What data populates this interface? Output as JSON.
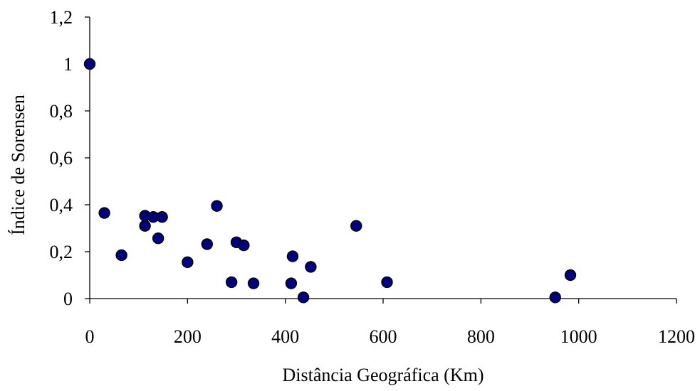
{
  "chart_data": {
    "type": "scatter",
    "title": "",
    "xlabel": "Distância Geográfica (Km)",
    "ylabel": "Índice de Sorensen",
    "xlim": [
      0,
      1200
    ],
    "ylim": [
      0,
      1.2
    ],
    "x_ticks": [
      0,
      200,
      400,
      600,
      800,
      1000,
      1200
    ],
    "y_ticks": [
      0,
      0.2,
      0.4,
      0.6,
      0.8,
      1,
      1.2
    ],
    "x_tick_labels": [
      "0",
      "200",
      "400",
      "600",
      "800",
      "1000",
      "1200"
    ],
    "y_tick_labels": [
      "0",
      "0,2",
      "0,4",
      "0,6",
      "0,8",
      "1",
      "1,2"
    ],
    "grid": false,
    "legend": "none",
    "marker_color": "#000080",
    "marker_edge_color": "#000000",
    "series": [
      {
        "points": [
          {
            "x": 0,
            "y": 1.0
          },
          {
            "x": 30,
            "y": 0.365
          },
          {
            "x": 65,
            "y": 0.185
          },
          {
            "x": 113,
            "y": 0.353
          },
          {
            "x": 113,
            "y": 0.31
          },
          {
            "x": 130,
            "y": 0.348
          },
          {
            "x": 140,
            "y": 0.257
          },
          {
            "x": 148,
            "y": 0.348
          },
          {
            "x": 200,
            "y": 0.155
          },
          {
            "x": 240,
            "y": 0.232
          },
          {
            "x": 260,
            "y": 0.395
          },
          {
            "x": 290,
            "y": 0.07
          },
          {
            "x": 300,
            "y": 0.24
          },
          {
            "x": 315,
            "y": 0.227
          },
          {
            "x": 335,
            "y": 0.065
          },
          {
            "x": 412,
            "y": 0.065
          },
          {
            "x": 415,
            "y": 0.18
          },
          {
            "x": 437,
            "y": 0.005
          },
          {
            "x": 452,
            "y": 0.135
          },
          {
            "x": 545,
            "y": 0.31
          },
          {
            "x": 608,
            "y": 0.07
          },
          {
            "x": 952,
            "y": 0.005
          },
          {
            "x": 983,
            "y": 0.1
          }
        ]
      }
    ]
  }
}
